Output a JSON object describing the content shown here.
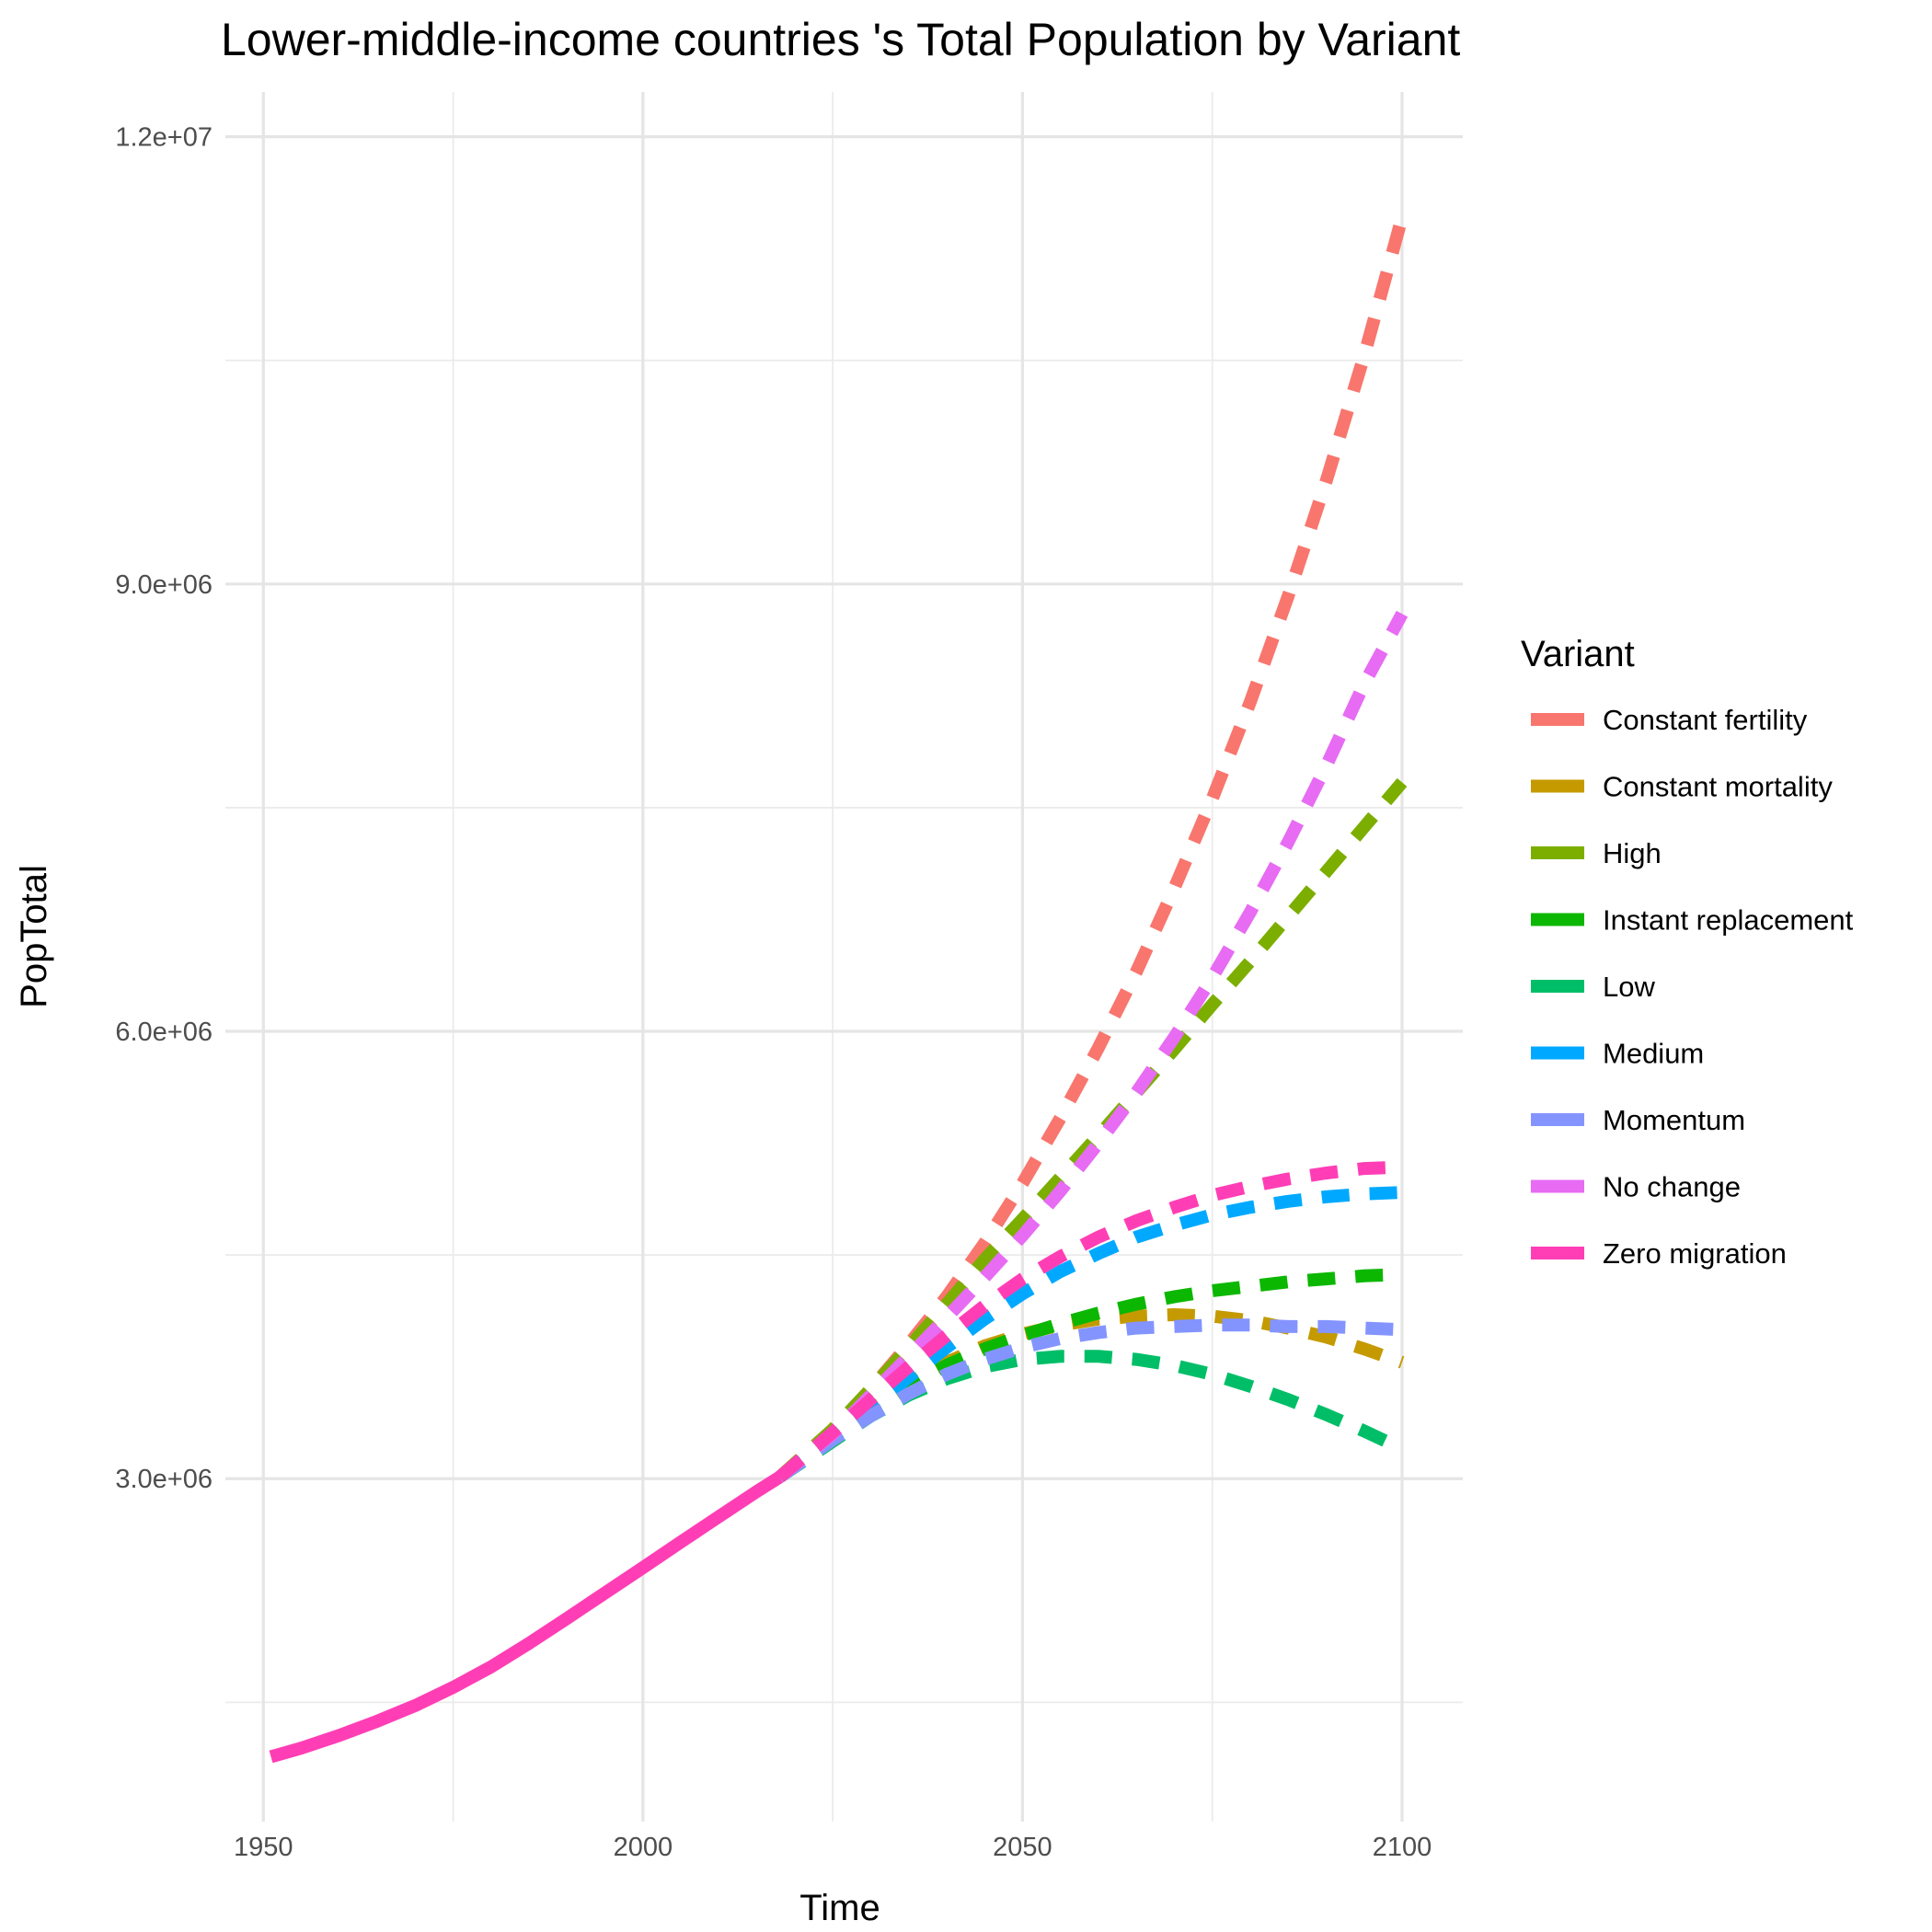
{
  "chart_data": {
    "type": "line",
    "title": "Lower-middle-income countries 's Total Population by Variant",
    "xlabel": "Time",
    "ylabel": "PopTotal",
    "xlim": [
      1945,
      2108
    ],
    "ylim": [
      700000,
      12300000
    ],
    "x_ticks": [
      1950,
      2000,
      2050,
      2100
    ],
    "x_tick_labels": [
      "1950",
      "2000",
      "2050",
      "2100"
    ],
    "x_minor_ticks": [
      1975,
      2025,
      2075
    ],
    "y_ticks": [
      3000000,
      6000000,
      9000000,
      12000000
    ],
    "y_tick_labels": [
      "3.0e+06",
      "6.0e+06",
      "9.0e+06",
      "1.2e+07"
    ],
    "y_minor_ticks": [
      1500000,
      4500000,
      7500000,
      10500000
    ],
    "grid": true,
    "legend": {
      "title": "Variant",
      "position": "right"
    },
    "historical": {
      "name": "Zero migration",
      "color": "#FF3EB5",
      "x": [
        1951,
        1955,
        1960,
        1965,
        1970,
        1975,
        1980,
        1985,
        1990,
        1995,
        2000,
        2005,
        2010,
        2015,
        2018
      ],
      "y": [
        1135000,
        1193000,
        1278000,
        1373000,
        1478000,
        1600000,
        1738000,
        1896000,
        2063000,
        2233000,
        2403000,
        2575000,
        2745000,
        2914000,
        3010000
      ]
    },
    "x": [
      2018,
      2025,
      2030,
      2035,
      2040,
      2045,
      2050,
      2055,
      2060,
      2065,
      2070,
      2075,
      2080,
      2085,
      2090,
      2095,
      2100
    ],
    "series": [
      {
        "name": "Constant fertility",
        "color": "#F8766D",
        "values": [
          3010000,
          3330000,
          3600000,
          3900000,
          4220000,
          4580000,
          4980000,
          5420000,
          5890000,
          6400000,
          6960000,
          7560000,
          8210000,
          8920000,
          9690000,
          10530000,
          11460000
        ]
      },
      {
        "name": "Constant mortality",
        "color": "#C49A00",
        "values": [
          3010000,
          3280000,
          3470000,
          3640000,
          3780000,
          3890000,
          3970000,
          4030000,
          4070000,
          4090000,
          4100000,
          4090000,
          4060000,
          4010000,
          3950000,
          3870000,
          3780000
        ]
      },
      {
        "name": "High",
        "color": "#7CAE00",
        "values": [
          3010000,
          3330000,
          3600000,
          3880000,
          4170000,
          4470000,
          4740000,
          5020000,
          5300000,
          5590000,
          5880000,
          6180000,
          6470000,
          6770000,
          7070000,
          7370000,
          7670000
        ]
      },
      {
        "name": "Instant replacement",
        "color": "#0CB702",
        "values": [
          3010000,
          3280000,
          3460000,
          3620000,
          3760000,
          3870000,
          3960000,
          4040000,
          4110000,
          4170000,
          4220000,
          4260000,
          4290000,
          4320000,
          4340000,
          4360000,
          4370000
        ]
      },
      {
        "name": "Low",
        "color": "#00BE67",
        "values": [
          3010000,
          3250000,
          3420000,
          3560000,
          3670000,
          3750000,
          3800000,
          3820000,
          3820000,
          3800000,
          3760000,
          3700000,
          3620000,
          3530000,
          3430000,
          3320000,
          3200000
        ]
      },
      {
        "name": "Medium",
        "color": "#00A9FF",
        "values": [
          3010000,
          3280000,
          3480000,
          3680000,
          3880000,
          4070000,
          4240000,
          4390000,
          4510000,
          4620000,
          4700000,
          4770000,
          4820000,
          4860000,
          4890000,
          4910000,
          4920000
        ]
      },
      {
        "name": "Momentum",
        "color": "#8494FF",
        "values": [
          3010000,
          3260000,
          3420000,
          3570000,
          3700000,
          3800000,
          3880000,
          3940000,
          3980000,
          4010000,
          4020000,
          4030000,
          4030000,
          4020000,
          4020000,
          4010000,
          4000000
        ]
      },
      {
        "name": "No change",
        "color": "#E76BF3",
        "values": [
          3010000,
          3300000,
          3560000,
          3820000,
          4080000,
          4350000,
          4630000,
          4930000,
          5250000,
          5590000,
          5960000,
          6360000,
          6800000,
          7270000,
          7780000,
          8330000,
          8800000
        ]
      },
      {
        "name": "Zero migration",
        "color": "#FF3EB5",
        "values": [
          3010000,
          3310000,
          3530000,
          3750000,
          3960000,
          4160000,
          4340000,
          4490000,
          4620000,
          4730000,
          4820000,
          4900000,
          4960000,
          5010000,
          5050000,
          5080000,
          5090000
        ]
      }
    ]
  }
}
